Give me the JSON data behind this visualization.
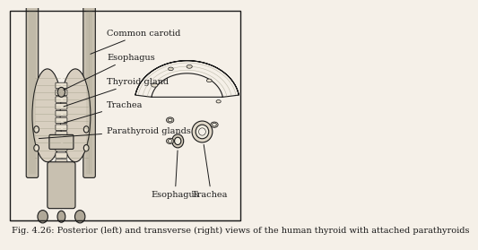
{
  "title": "",
  "caption": "Fig. 4.26: Posterior (left) and transverse (right) views of the human thyroid with attached parathyroids",
  "background_color": "#f5f0e8",
  "line_color": "#1a1a1a",
  "caption_fontsize": 7,
  "label_fontsize": 8
}
